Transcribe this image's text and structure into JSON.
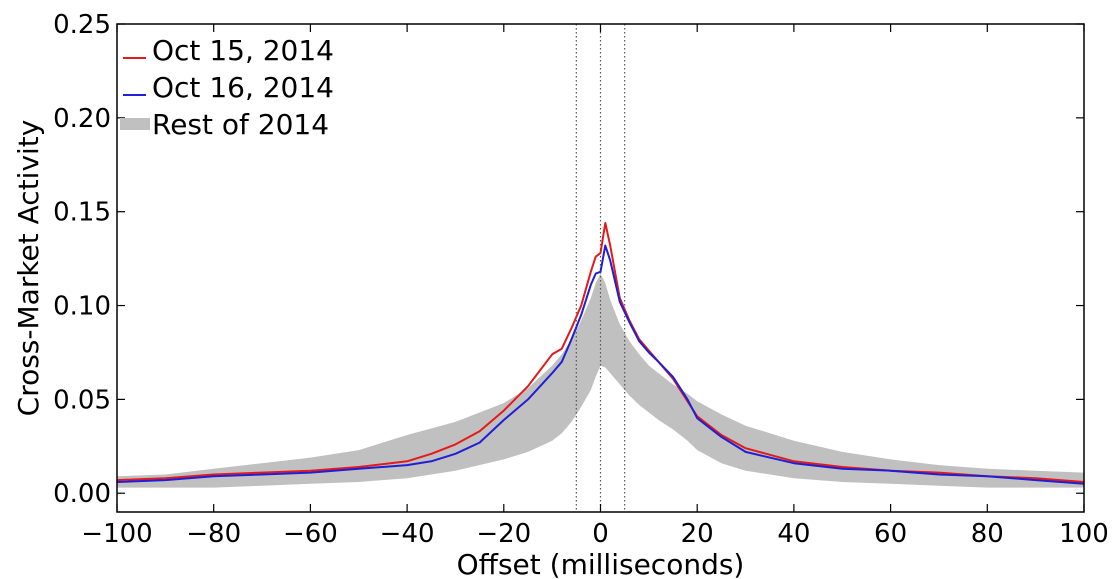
{
  "chart_data": {
    "type": "line",
    "xlabel": "Offset (milliseconds)",
    "ylabel": "Cross-Market Activity",
    "xlim": [
      -100,
      100
    ],
    "ylim": [
      -0.01,
      0.25
    ],
    "xticks": [
      -100,
      -80,
      -60,
      -40,
      -20,
      0,
      20,
      40,
      60,
      80,
      100
    ],
    "xtick_labels": [
      "−100",
      "−80",
      "−60",
      "−40",
      "−20",
      "0",
      "20",
      "40",
      "60",
      "80",
      "100"
    ],
    "yticks": [
      0.0,
      0.05,
      0.1,
      0.15,
      0.2,
      0.25
    ],
    "ytick_labels": [
      "0.00",
      "0.05",
      "0.10",
      "0.15",
      "0.20",
      "0.25"
    ],
    "grid": false,
    "legend_position": "top-left",
    "vlines": [
      -5,
      0,
      5
    ],
    "colors": {
      "oct15": "#e31a1c",
      "oct16": "#1f1fd6",
      "band": "#c0c0c0",
      "vline": "#555555"
    },
    "series": [
      {
        "name": "Oct 15, 2014",
        "color": "#e31a1c",
        "x": [
          -100,
          -90,
          -80,
          -70,
          -60,
          -50,
          -40,
          -35,
          -30,
          -25,
          -20,
          -15,
          -10,
          -8,
          -6,
          -4,
          -2,
          -1,
          0,
          1,
          2,
          3,
          4,
          6,
          8,
          10,
          12,
          15,
          18,
          20,
          25,
          30,
          40,
          50,
          60,
          70,
          80,
          90,
          100
        ],
        "y": [
          0.007,
          0.008,
          0.01,
          0.011,
          0.012,
          0.014,
          0.017,
          0.021,
          0.026,
          0.033,
          0.044,
          0.057,
          0.074,
          0.077,
          0.088,
          0.1,
          0.118,
          0.126,
          0.128,
          0.144,
          0.132,
          0.118,
          0.104,
          0.092,
          0.082,
          0.076,
          0.07,
          0.061,
          0.049,
          0.041,
          0.031,
          0.024,
          0.017,
          0.014,
          0.012,
          0.011,
          0.009,
          0.008,
          0.006
        ]
      },
      {
        "name": "Oct 16, 2014",
        "color": "#1f1fd6",
        "x": [
          -100,
          -90,
          -80,
          -70,
          -60,
          -50,
          -40,
          -35,
          -30,
          -25,
          -20,
          -15,
          -10,
          -8,
          -6,
          -4,
          -2,
          -1,
          0,
          1,
          2,
          3,
          4,
          6,
          8,
          10,
          12,
          15,
          18,
          20,
          25,
          30,
          40,
          50,
          60,
          70,
          80,
          90,
          100
        ],
        "y": [
          0.006,
          0.007,
          0.009,
          0.01,
          0.011,
          0.013,
          0.015,
          0.017,
          0.021,
          0.027,
          0.039,
          0.05,
          0.064,
          0.07,
          0.082,
          0.095,
          0.111,
          0.117,
          0.118,
          0.132,
          0.124,
          0.113,
          0.102,
          0.091,
          0.081,
          0.075,
          0.07,
          0.062,
          0.05,
          0.04,
          0.03,
          0.022,
          0.016,
          0.013,
          0.012,
          0.01,
          0.009,
          0.007,
          0.005
        ]
      },
      {
        "name": "Rest of 2014",
        "color": "#c0c0c0",
        "type": "band",
        "x": [
          -100,
          -90,
          -80,
          -70,
          -60,
          -50,
          -40,
          -30,
          -20,
          -15,
          -10,
          -8,
          -6,
          -4,
          -2,
          -1,
          0,
          1,
          2,
          4,
          6,
          8,
          10,
          12,
          15,
          18,
          20,
          25,
          30,
          40,
          50,
          60,
          70,
          80,
          90,
          100
        ],
        "low": [
          0.003,
          0.003,
          0.003,
          0.004,
          0.005,
          0.006,
          0.008,
          0.012,
          0.018,
          0.022,
          0.028,
          0.032,
          0.038,
          0.046,
          0.055,
          0.062,
          0.068,
          0.067,
          0.064,
          0.058,
          0.052,
          0.047,
          0.043,
          0.039,
          0.034,
          0.028,
          0.023,
          0.016,
          0.012,
          0.008,
          0.006,
          0.005,
          0.004,
          0.003,
          0.003,
          0.003
        ],
        "high": [
          0.009,
          0.01,
          0.013,
          0.016,
          0.019,
          0.023,
          0.031,
          0.038,
          0.048,
          0.056,
          0.068,
          0.074,
          0.082,
          0.092,
          0.104,
          0.112,
          0.117,
          0.112,
          0.103,
          0.09,
          0.081,
          0.074,
          0.068,
          0.064,
          0.058,
          0.053,
          0.049,
          0.042,
          0.036,
          0.028,
          0.022,
          0.018,
          0.015,
          0.013,
          0.012,
          0.011
        ]
      }
    ]
  }
}
